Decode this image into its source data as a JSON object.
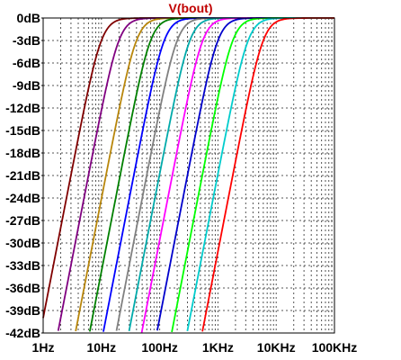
{
  "chart_data": {
    "type": "line",
    "title": "V(bout)",
    "title_color": "#c00000",
    "xlabel": "",
    "ylabel": "",
    "x_scale": "log",
    "xlim": [
      1,
      100000
    ],
    "ylim": [
      -42,
      0
    ],
    "x_tick_labels": [
      "1Hz",
      "10Hz",
      "100Hz",
      "1KHz",
      "10KHz",
      "100KHz"
    ],
    "y_tick_labels": [
      "0dB",
      "-3dB",
      "-6dB",
      "-9dB",
      "-12dB",
      "-15dB",
      "-18dB",
      "-21dB",
      "-24dB",
      "-27dB",
      "-30dB",
      "-33dB",
      "-36dB",
      "-39dB",
      "-42dB"
    ],
    "grid": true,
    "legend": "none",
    "series": [
      {
        "color": "#800000",
        "cutoff_hz": 10,
        "order": 2
      },
      {
        "color": "#800080",
        "cutoff_hz": 20,
        "order": 2
      },
      {
        "color": "#b8860b",
        "cutoff_hz": 40,
        "order": 2
      },
      {
        "color": "#008000",
        "cutoff_hz": 70,
        "order": 2
      },
      {
        "color": "#0000ff",
        "cutoff_hz": 120,
        "order": 2
      },
      {
        "color": "#808080",
        "cutoff_hz": 200,
        "order": 2
      },
      {
        "color": "#00aaaa",
        "cutoff_hz": 330,
        "order": 2
      },
      {
        "color": "#ff00ff",
        "cutoff_hz": 550,
        "order": 2
      },
      {
        "color": "#0000cc",
        "cutoff_hz": 1000,
        "order": 2
      },
      {
        "color": "#00ff00",
        "cutoff_hz": 1800,
        "order": 2
      },
      {
        "color": "#00cccc",
        "cutoff_hz": 3300,
        "order": 2
      },
      {
        "color": "#ff0000",
        "cutoff_hz": 6000,
        "order": 2
      }
    ]
  }
}
